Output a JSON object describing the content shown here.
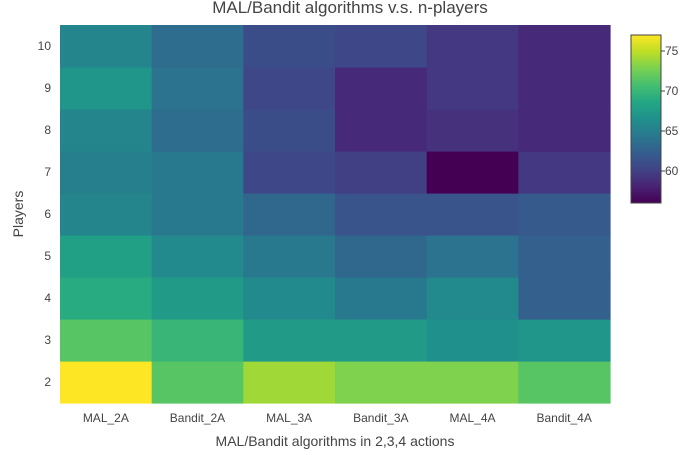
{
  "chart_data": {
    "type": "heatmap",
    "title": "MAL/Bandit algorithms v.s. n-players",
    "xlabel": "MAL/Bandit algorithms in 2,3,4 actions",
    "ylabel": "Players",
    "x": [
      "MAL_2A",
      "Bandit_2A",
      "MAL_3A",
      "Bandit_3A",
      "MAL_4A",
      "Bandit_4A"
    ],
    "y": [
      "2",
      "3",
      "4",
      "5",
      "6",
      "7",
      "8",
      "9",
      "10"
    ],
    "z": [
      [
        77,
        71.5,
        74,
        73,
        73,
        71.5
      ],
      [
        71.5,
        70,
        67.5,
        67.5,
        66.5,
        67
      ],
      [
        69,
        67.5,
        66,
        64.5,
        66,
        62.5
      ],
      [
        68,
        66,
        64.5,
        63,
        64,
        62.5
      ],
      [
        65.5,
        64.5,
        63,
        61.5,
        61.5,
        62
      ],
      [
        65,
        64.5,
        60.5,
        60,
        56,
        59.5
      ],
      [
        65.5,
        63.5,
        61,
        58.5,
        59,
        58.5
      ],
      [
        67,
        64,
        60.5,
        58.5,
        59.5,
        58.5
      ],
      [
        65.5,
        63.5,
        61,
        60.5,
        59.5,
        58.5
      ]
    ],
    "zmin": 56,
    "zmax": 77,
    "colorscale": "Viridis",
    "colorbar_ticks": [
      "60",
      "65",
      "70",
      "75"
    ],
    "grid": false
  }
}
